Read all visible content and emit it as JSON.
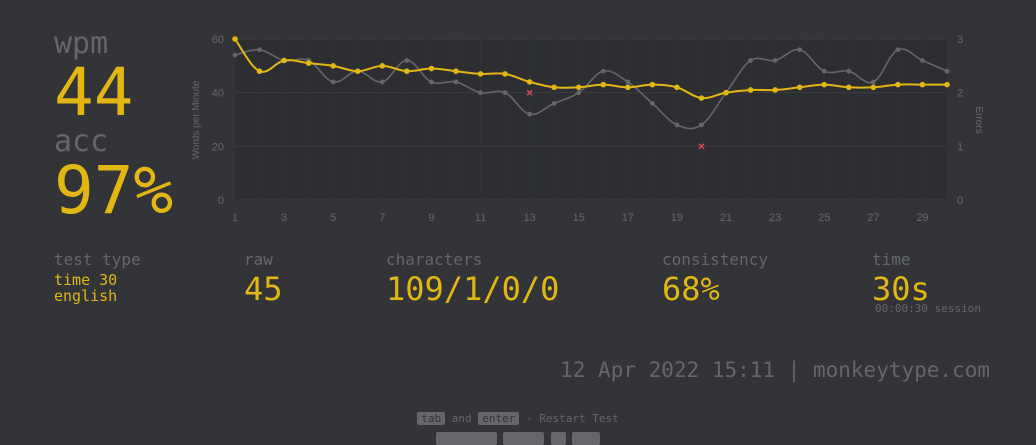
{
  "stats": {
    "wpm_label": "wpm",
    "wpm_value": "44",
    "acc_label": "acc",
    "acc_value": "97%"
  },
  "details": {
    "test_type_title": "test type",
    "test_type_mode": "time 30",
    "test_type_language": "english",
    "raw_title": "raw",
    "raw_value": "45",
    "characters_title": "characters",
    "characters_value": "109/1/0/0",
    "consistency_title": "consistency",
    "consistency_value": "68%",
    "time_title": "time",
    "time_value": "30s",
    "session_time": "00:00:30 session"
  },
  "footer": {
    "date_line": "12 Apr 2022 15:11 | monkeytype.com",
    "hint_key1": "tab",
    "hint_and": "and",
    "hint_key2": "enter",
    "hint_restart": "- Restart Test"
  },
  "colors": {
    "background": "#323437",
    "accent": "#e2b714",
    "sub": "#646669",
    "raw_line": "#646669",
    "error": "#ca4754"
  },
  "chart_data": {
    "type": "line",
    "x": [
      1,
      2,
      3,
      4,
      5,
      6,
      7,
      8,
      9,
      10,
      11,
      12,
      13,
      14,
      15,
      16,
      17,
      18,
      19,
      20,
      21,
      22,
      23,
      24,
      25,
      26,
      27,
      28,
      29,
      30
    ],
    "xticks": [
      1,
      3,
      5,
      7,
      9,
      11,
      13,
      15,
      17,
      19,
      21,
      23,
      25,
      27,
      29
    ],
    "ylabel": "Words per Minute",
    "y2label": "Errors",
    "ylim": [
      0,
      60
    ],
    "yticks": [
      0,
      20,
      40,
      60
    ],
    "y2lim": [
      0,
      3
    ],
    "y2ticks": [
      0,
      1,
      2,
      3
    ],
    "grid": true,
    "series": [
      {
        "role": "wpm",
        "color": "#e2b714",
        "values": [
          60,
          48,
          52,
          51,
          50,
          48,
          50,
          48,
          49,
          48,
          47,
          47,
          44,
          42,
          42,
          43,
          42,
          43,
          42,
          38,
          40,
          41,
          41,
          42,
          43,
          42,
          42,
          43,
          43,
          43
        ]
      },
      {
        "role": "raw",
        "color": "#646669",
        "values": [
          54,
          56,
          52,
          52,
          44,
          48,
          44,
          52,
          44,
          44,
          40,
          40,
          32,
          36,
          40,
          48,
          44,
          36,
          28,
          28,
          40,
          52,
          52,
          56,
          48,
          48,
          44,
          56,
          52,
          48
        ]
      }
    ],
    "errors": [
      {
        "x": 13,
        "y": 2
      },
      {
        "x": 20,
        "y": 1
      }
    ]
  }
}
